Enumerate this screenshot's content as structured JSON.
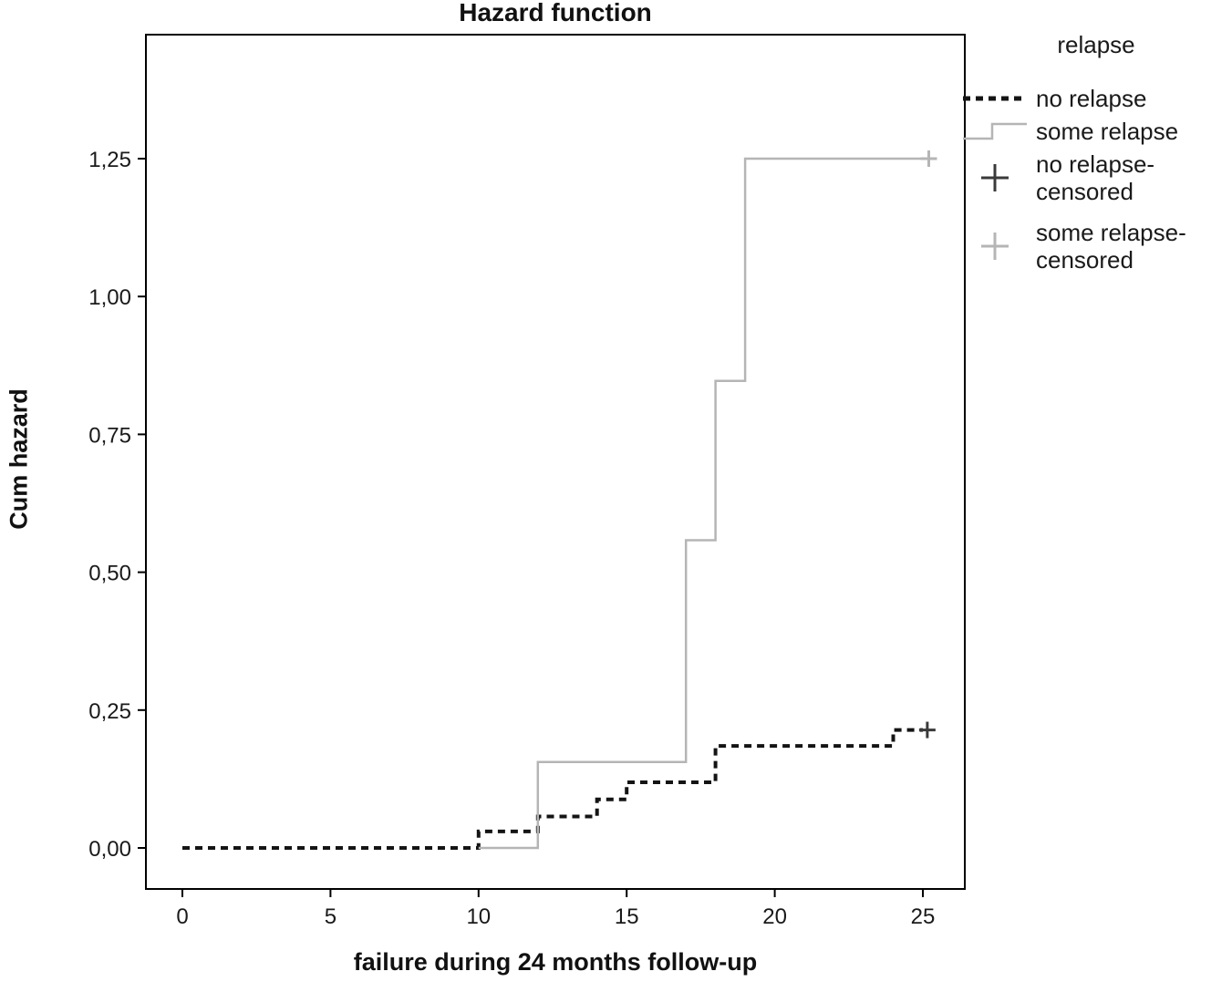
{
  "title": "Hazard function",
  "chart_data": {
    "type": "line",
    "subtype": "step",
    "title": "Hazard function",
    "xlabel": "failure during 24 months follow-up",
    "ylabel": "Cum hazard",
    "xlim": [
      -1.2,
      26.5
    ],
    "ylim": [
      -0.095,
      1.45
    ],
    "xticks": [
      0,
      5,
      10,
      15,
      20,
      25
    ],
    "yticks": [
      "0,00",
      "0,25",
      "0,50",
      "0,75",
      "1,00",
      "1,25"
    ],
    "ytick_values": [
      0,
      0.25,
      0.5,
      0.75,
      1.0,
      1.25
    ],
    "grid": false,
    "legend_title": "relapse",
    "legend_position": "right",
    "series": [
      {
        "name": "no relapse",
        "color": "#141414",
        "dash": "dashed",
        "points": [
          [
            0,
            0
          ],
          [
            10,
            0
          ],
          [
            10,
            0.03
          ],
          [
            12,
            0.03
          ],
          [
            12,
            0.057
          ],
          [
            14,
            0.057
          ],
          [
            14,
            0.088
          ],
          [
            15,
            0.088
          ],
          [
            15,
            0.119
          ],
          [
            18,
            0.119
          ],
          [
            18,
            0.185
          ],
          [
            24,
            0.185
          ],
          [
            24,
            0.214
          ],
          [
            25,
            0.214
          ]
        ],
        "censored": [
          [
            25.15,
            0.214
          ]
        ]
      },
      {
        "name": "some relapse",
        "color": "#b5b5b5",
        "dash": "solid",
        "points": [
          [
            10,
            0
          ],
          [
            12,
            0
          ],
          [
            12,
            0.156
          ],
          [
            17,
            0.156
          ],
          [
            17,
            0.558
          ],
          [
            18,
            0.558
          ],
          [
            18,
            0.847
          ],
          [
            19,
            0.847
          ],
          [
            19,
            1.25
          ],
          [
            25.2,
            1.25
          ]
        ],
        "censored": [
          [
            25.2,
            1.25
          ]
        ]
      }
    ],
    "legend": [
      {
        "label": "no relapse",
        "marker": "dashed-line",
        "color": "#141414"
      },
      {
        "label": "some relapse",
        "marker": "step-line",
        "color": "#b5b5b5"
      },
      {
        "label": "no relapse-\ncensored",
        "marker": "plus",
        "color": "#3a3a3a"
      },
      {
        "label": "some relapse-\ncensored",
        "marker": "plus",
        "color": "#b5b5b5"
      }
    ]
  }
}
